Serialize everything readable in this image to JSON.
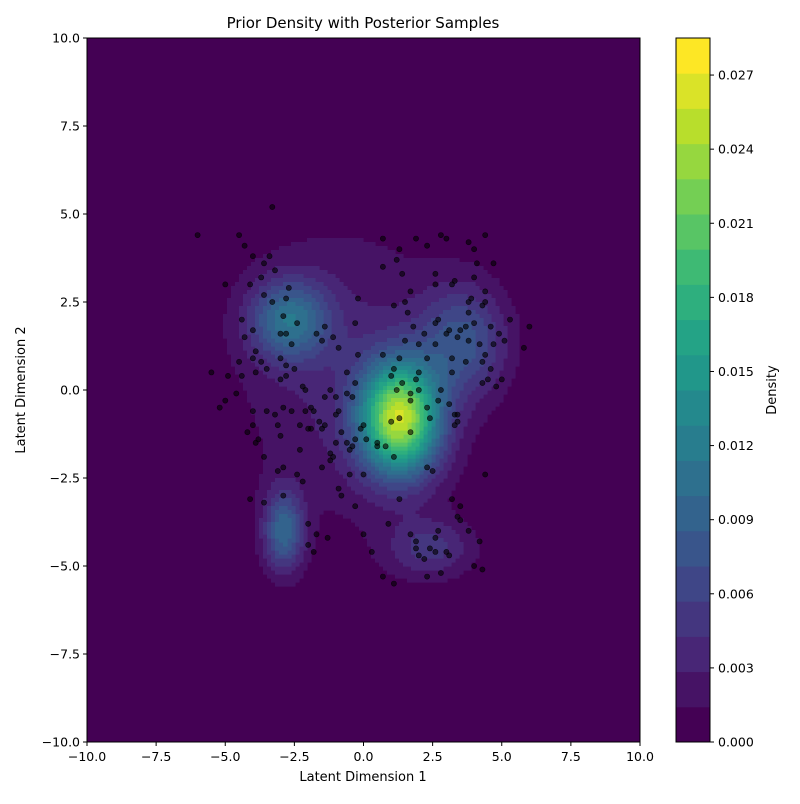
{
  "chart_data": {
    "type": "contour+scatter",
    "title": "Prior Density with Posterior Samples",
    "xlabel": "Latent Dimension 1",
    "ylabel": "Latent Dimension 2",
    "xlim": [
      -10,
      10
    ],
    "ylim": [
      -10,
      10
    ],
    "x_ticks": [
      "−10.0",
      "−7.5",
      "−5.0",
      "−2.5",
      "0.0",
      "2.5",
      "5.0",
      "7.5",
      "10.0"
    ],
    "y_ticks": [
      "−10.0",
      "−7.5",
      "−5.0",
      "−2.5",
      "0.0",
      "2.5",
      "5.0",
      "7.5",
      "10.0"
    ],
    "x_tick_values": [
      -10,
      -7.5,
      -5,
      -2.5,
      0,
      2.5,
      5,
      7.5,
      10
    ],
    "y_tick_values": [
      -10,
      -7.5,
      -5,
      -2.5,
      0,
      2.5,
      5,
      7.5,
      10
    ],
    "colormap": "viridis",
    "colorbar": {
      "label": "Density",
      "min": 0.0,
      "max": 0.0285,
      "levels": 20,
      "ticks": [
        "0.000",
        "0.003",
        "0.006",
        "0.009",
        "0.012",
        "0.015",
        "0.018",
        "0.021",
        "0.024",
        "0.027"
      ],
      "tick_values": [
        0,
        0.003,
        0.006,
        0.009,
        0.012,
        0.015,
        0.018,
        0.021,
        0.024,
        0.027
      ]
    },
    "density_components": [
      {
        "mean": [
          1.3,
          -0.8
        ],
        "sd": [
          1.0,
          1.1
        ],
        "peak": 0.0235
      },
      {
        "mean": [
          -2.7,
          2.0
        ],
        "sd": [
          1.0,
          0.8
        ],
        "peak": 0.0095
      },
      {
        "mean": [
          3.6,
          1.4
        ],
        "sd": [
          1.1,
          1.1
        ],
        "peak": 0.007
      },
      {
        "mean": [
          -2.9,
          -4.0
        ],
        "sd": [
          0.5,
          0.8
        ],
        "peak": 0.009
      },
      {
        "mean": [
          2.4,
          -4.5
        ],
        "sd": [
          1.1,
          0.6
        ],
        "peak": 0.0045
      },
      {
        "mean": [
          -0.6,
          0.5
        ],
        "sd": [
          2.8,
          3.0
        ],
        "peak": 0.0032
      }
    ],
    "posterior_samples": [
      [
        -6.0,
        4.4
      ],
      [
        -3.3,
        5.2
      ],
      [
        -4.5,
        4.4
      ],
      [
        -4.3,
        4.1
      ],
      [
        -4.0,
        3.8
      ],
      [
        -3.4,
        3.8
      ],
      [
        -3.2,
        3.4
      ],
      [
        -3.6,
        3.6
      ],
      [
        -3.7,
        3.2
      ],
      [
        -5.0,
        3.0
      ],
      [
        -4.1,
        3.0
      ],
      [
        -2.7,
        2.9
      ],
      [
        -3.6,
        2.7
      ],
      [
        -2.8,
        2.6
      ],
      [
        -3.3,
        2.5
      ],
      [
        -4.4,
        2.0
      ],
      [
        -2.9,
        2.1
      ],
      [
        -2.4,
        1.9
      ],
      [
        -4.0,
        1.7
      ],
      [
        -3.0,
        1.6
      ],
      [
        -2.8,
        1.6
      ],
      [
        -4.3,
        1.5
      ],
      [
        -2.6,
        1.3
      ],
      [
        -1.7,
        1.6
      ],
      [
        -1.4,
        1.8
      ],
      [
        -1.1,
        1.5
      ],
      [
        -0.9,
        1.2
      ],
      [
        -1.5,
        1.4
      ],
      [
        -0.3,
        1.9
      ],
      [
        -0.2,
        2.6
      ],
      [
        -3.9,
        1.1
      ],
      [
        -4.0,
        0.9
      ],
      [
        -4.5,
        0.8
      ],
      [
        -3.7,
        0.8
      ],
      [
        -3.0,
        0.9
      ],
      [
        -2.8,
        0.7
      ],
      [
        -2.5,
        0.6
      ],
      [
        -5.5,
        0.5
      ],
      [
        -4.9,
        0.4
      ],
      [
        -4.4,
        0.4
      ],
      [
        -3.9,
        0.5
      ],
      [
        -3.5,
        0.6
      ],
      [
        -3.0,
        0.3
      ],
      [
        -2.8,
        0.4
      ],
      [
        -4.6,
        -0.1
      ],
      [
        -5.0,
        -0.3
      ],
      [
        -5.2,
        -0.5
      ],
      [
        -4.0,
        -0.6
      ],
      [
        -3.5,
        -0.6
      ],
      [
        -3.2,
        -0.7
      ],
      [
        -2.9,
        -0.5
      ],
      [
        -2.6,
        -0.6
      ],
      [
        -2.2,
        0.1
      ],
      [
        -2.1,
        0.0
      ],
      [
        -1.8,
        -0.6
      ],
      [
        -1.4,
        -0.2
      ],
      [
        -1.2,
        0.0
      ],
      [
        -1.0,
        -0.2
      ],
      [
        -0.9,
        -0.6
      ],
      [
        -0.6,
        -0.1
      ],
      [
        -0.4,
        -0.2
      ],
      [
        -0.3,
        0.2
      ],
      [
        -0.6,
        0.5
      ],
      [
        -0.2,
        1.0
      ],
      [
        -4.2,
        -1.2
      ],
      [
        -4.0,
        -1.0
      ],
      [
        -3.8,
        -1.4
      ],
      [
        -3.9,
        -1.5
      ],
      [
        -3.1,
        -1.0
      ],
      [
        -3.0,
        -1.3
      ],
      [
        -2.3,
        -1.0
      ],
      [
        -2.0,
        -1.1
      ],
      [
        -1.9,
        -1.1
      ],
      [
        -1.4,
        -1.0
      ],
      [
        -1.2,
        -1.8
      ],
      [
        -1.0,
        -1.5
      ],
      [
        -0.8,
        -1.2
      ],
      [
        -0.6,
        -1.5
      ],
      [
        -0.5,
        -1.7
      ],
      [
        -0.3,
        -1.4
      ],
      [
        -0.1,
        -1.1
      ],
      [
        0.0,
        -1.0
      ],
      [
        -2.3,
        -1.7
      ],
      [
        -3.6,
        -1.9
      ],
      [
        -4.1,
        -3.1
      ],
      [
        -3.6,
        -3.2
      ],
      [
        -3.1,
        -2.3
      ],
      [
        -2.9,
        -2.2
      ],
      [
        -2.9,
        -3.0
      ],
      [
        -2.4,
        -2.4
      ],
      [
        -2.2,
        -2.6
      ],
      [
        -1.5,
        -2.2
      ],
      [
        -1.2,
        -2.0
      ],
      [
        -0.9,
        -2.8
      ],
      [
        -0.8,
        -3.0
      ],
      [
        -0.5,
        -2.4
      ],
      [
        -0.3,
        -3.3
      ],
      [
        -2.0,
        -3.8
      ],
      [
        -2.0,
        -4.4
      ],
      [
        -1.8,
        -4.6
      ],
      [
        -1.7,
        -4.1
      ],
      [
        -1.3,
        -4.2
      ],
      [
        0.0,
        -2.4
      ],
      [
        0.1,
        -1.4
      ],
      [
        0.5,
        -1.6
      ],
      [
        0.8,
        -1.6
      ],
      [
        1.1,
        -1.9
      ],
      [
        0.9,
        -3.8
      ],
      [
        1.3,
        -3.1
      ],
      [
        0.0,
        -4.1
      ],
      [
        0.3,
        -4.6
      ],
      [
        0.7,
        -5.3
      ],
      [
        1.1,
        -5.5
      ],
      [
        1.7,
        -4.1
      ],
      [
        1.9,
        -4.3
      ],
      [
        1.9,
        -4.5
      ],
      [
        2.0,
        -4.7
      ],
      [
        2.2,
        -4.8
      ],
      [
        2.4,
        -4.5
      ],
      [
        2.6,
        -4.2
      ],
      [
        2.6,
        -4.6
      ],
      [
        2.7,
        -4.0
      ],
      [
        2.8,
        -5.2
      ],
      [
        2.3,
        -5.3
      ],
      [
        3.0,
        -4.6
      ],
      [
        3.1,
        -4.7
      ],
      [
        3.2,
        -3.1
      ],
      [
        3.4,
        -3.6
      ],
      [
        3.5,
        -3.3
      ],
      [
        3.5,
        -3.7
      ],
      [
        3.8,
        -4.0
      ],
      [
        4.0,
        -5.0
      ],
      [
        4.2,
        -4.3
      ],
      [
        4.3,
        -5.1
      ],
      [
        4.4,
        -2.4
      ],
      [
        2.3,
        -2.2
      ],
      [
        2.5,
        -2.3
      ],
      [
        2.3,
        -0.5
      ],
      [
        2.4,
        -0.8
      ],
      [
        2.7,
        -0.3
      ],
      [
        2.8,
        0.0
      ],
      [
        3.1,
        -0.4
      ],
      [
        3.3,
        -0.7
      ],
      [
        3.4,
        -0.9
      ],
      [
        3.4,
        -0.7
      ],
      [
        3.3,
        -1.0
      ],
      [
        1.7,
        -0.1
      ],
      [
        1.7,
        -0.3
      ],
      [
        1.7,
        -1.2
      ],
      [
        2.0,
        0.0
      ],
      [
        1.4,
        0.2
      ],
      [
        1.0,
        0.4
      ],
      [
        1.1,
        0.6
      ],
      [
        0.7,
        1.0
      ],
      [
        1.3,
        0.9
      ],
      [
        1.9,
        0.3
      ],
      [
        2.0,
        0.5
      ],
      [
        2.3,
        0.9
      ],
      [
        2.6,
        1.3
      ],
      [
        3.2,
        0.5
      ],
      [
        3.2,
        0.9
      ],
      [
        3.7,
        0.8
      ],
      [
        2.0,
        1.3
      ],
      [
        1.8,
        1.8
      ],
      [
        2.2,
        1.6
      ],
      [
        2.6,
        1.9
      ],
      [
        2.7,
        2.0
      ],
      [
        3.1,
        1.7
      ],
      [
        3.4,
        1.5
      ],
      [
        3.5,
        1.7
      ],
      [
        3.7,
        1.8
      ],
      [
        3.8,
        1.4
      ],
      [
        4.0,
        1.9
      ],
      [
        4.2,
        1.3
      ],
      [
        4.4,
        1.0
      ],
      [
        4.6,
        1.8
      ],
      [
        4.7,
        1.3
      ],
      [
        4.9,
        1.6
      ],
      [
        5.1,
        1.4
      ],
      [
        5.3,
        2.0
      ],
      [
        5.8,
        1.2
      ],
      [
        6.0,
        1.8
      ],
      [
        4.3,
        0.8
      ],
      [
        4.5,
        0.3
      ],
      [
        4.6,
        0.6
      ],
      [
        4.8,
        0.1
      ],
      [
        5.0,
        0.3
      ],
      [
        4.3,
        0.2
      ],
      [
        1.1,
        2.4
      ],
      [
        1.6,
        2.2
      ],
      [
        1.5,
        2.5
      ],
      [
        2.6,
        3.0
      ],
      [
        2.6,
        3.3
      ],
      [
        1.4,
        3.3
      ],
      [
        1.7,
        2.8
      ],
      [
        3.2,
        3.0
      ],
      [
        3.3,
        3.1
      ],
      [
        3.8,
        2.5
      ],
      [
        3.9,
        2.6
      ],
      [
        3.8,
        2.2
      ],
      [
        4.3,
        2.4
      ],
      [
        4.4,
        2.5
      ],
      [
        4.4,
        2.8
      ],
      [
        4.0,
        3.2
      ],
      [
        4.1,
        3.6
      ],
      [
        4.7,
        3.6
      ],
      [
        3.8,
        4.2
      ],
      [
        4.4,
        4.4
      ],
      [
        4.0,
        4.0
      ],
      [
        2.8,
        4.4
      ],
      [
        3.0,
        4.3
      ],
      [
        2.3,
        4.1
      ],
      [
        1.9,
        4.3
      ],
      [
        1.3,
        4.0
      ],
      [
        1.2,
        3.7
      ],
      [
        0.7,
        4.3
      ],
      [
        0.7,
        3.5
      ],
      [
        1.0,
        -0.9
      ],
      [
        1.3,
        -0.8
      ],
      [
        -1.0,
        -0.7
      ],
      [
        -1.6,
        -0.9
      ],
      [
        -2.1,
        -0.6
      ],
      [
        -1.5,
        -1.1
      ],
      [
        0.5,
        -1.5
      ],
      [
        -0.4,
        -1.6
      ],
      [
        -1.9,
        -0.5
      ],
      [
        -1.1,
        -1.9
      ],
      [
        1.5,
        1.4
      ],
      [
        1.2,
        0.0
      ],
      [
        3.0,
        1.6
      ]
    ]
  }
}
